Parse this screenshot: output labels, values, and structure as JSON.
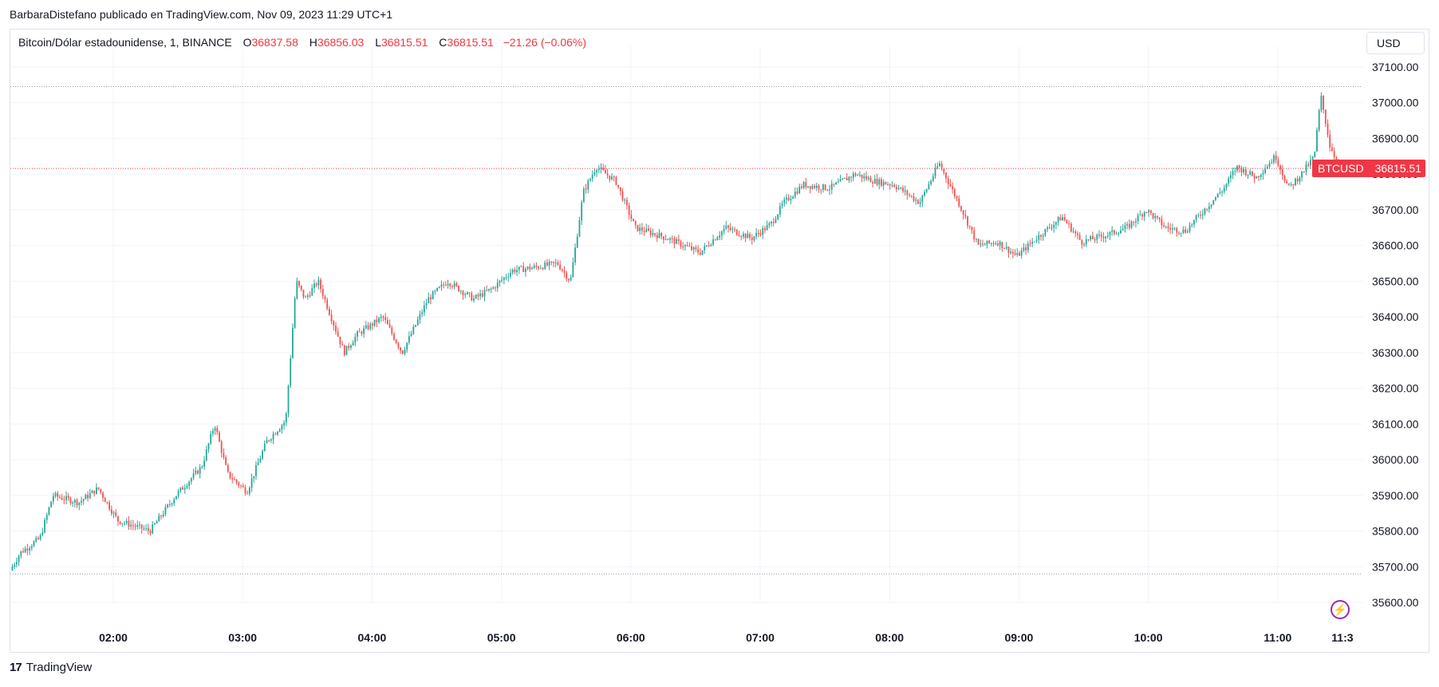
{
  "header": {
    "publisher_line": "BarbaraDistefano publicado en TradingView.com, Nov 09, 2023 11:29 UTC+1"
  },
  "legend": {
    "symbol_text": "Bitcoin/Dólar estadounidense, 1, BINANCE",
    "o_label": "O",
    "o_value": "36837.58",
    "h_label": "H",
    "h_value": "36856.03",
    "l_label": "L",
    "l_value": "36815.51",
    "c_label": "C",
    "c_value": "36815.51",
    "change": "−21.26 (−0.06%)"
  },
  "currency_button": "USD",
  "price_badge": {
    "symbol": "BTCUSD",
    "price": "36815.51"
  },
  "footer": {
    "brand": "TradingView",
    "logo_glyph": "17"
  },
  "colors": {
    "up": "#26a69a",
    "down": "#ef5350",
    "grid": "#f0f3fa",
    "badge": "#f23645",
    "bolt": "#9c27b0"
  },
  "chart_data": {
    "type": "candlestick",
    "ylim": [
      35550,
      37150
    ],
    "y_ticks": [
      35600,
      35700,
      35800,
      35900,
      36000,
      36100,
      36200,
      36300,
      36400,
      36500,
      36600,
      36700,
      36800,
      36900,
      37000,
      37100
    ],
    "y_tick_labels": [
      "35600.00",
      "35700.00",
      "35800.00",
      "35900.00",
      "36000.00",
      "36100.00",
      "36200.00",
      "36300.00",
      "36400.00",
      "36500.00",
      "36600.00",
      "36700.00",
      "36800.00",
      "36900.00",
      "37000.00",
      "37100.00"
    ],
    "x_ticks": [
      "02:00",
      "03:00",
      "04:00",
      "05:00",
      "06:00",
      "07:00",
      "08:00",
      "09:00",
      "10:00",
      "11:00",
      "11:3"
    ],
    "x_tick_positions_hours": [
      2,
      3,
      4,
      5,
      6,
      7,
      8,
      9,
      10,
      11,
      11.5
    ],
    "x_range_hours": [
      1.22,
      11.62
    ],
    "current_price": 36815.51,
    "high_marker": 37045,
    "low_marker": 35680,
    "path_key_points": [
      [
        1.22,
        35690
      ],
      [
        1.3,
        35740
      ],
      [
        1.45,
        35780
      ],
      [
        1.55,
        35900
      ],
      [
        1.75,
        35880
      ],
      [
        1.9,
        35920
      ],
      [
        2.05,
        35830
      ],
      [
        2.3,
        35800
      ],
      [
        2.5,
        35900
      ],
      [
        2.7,
        35980
      ],
      [
        2.8,
        36100
      ],
      [
        2.9,
        35960
      ],
      [
        3.05,
        35910
      ],
      [
        3.2,
        36050
      ],
      [
        3.35,
        36110
      ],
      [
        3.43,
        36500
      ],
      [
        3.5,
        36450
      ],
      [
        3.6,
        36500
      ],
      [
        3.8,
        36300
      ],
      [
        3.9,
        36350
      ],
      [
        4.1,
        36400
      ],
      [
        4.25,
        36300
      ],
      [
        4.45,
        36450
      ],
      [
        4.6,
        36500
      ],
      [
        4.8,
        36450
      ],
      [
        4.95,
        36480
      ],
      [
        5.1,
        36530
      ],
      [
        5.3,
        36540
      ],
      [
        5.45,
        36550
      ],
      [
        5.55,
        36500
      ],
      [
        5.65,
        36750
      ],
      [
        5.75,
        36820
      ],
      [
        5.9,
        36780
      ],
      [
        6.05,
        36650
      ],
      [
        6.3,
        36620
      ],
      [
        6.55,
        36580
      ],
      [
        6.75,
        36650
      ],
      [
        6.95,
        36620
      ],
      [
        7.1,
        36660
      ],
      [
        7.2,
        36720
      ],
      [
        7.35,
        36770
      ],
      [
        7.55,
        36760
      ],
      [
        7.75,
        36800
      ],
      [
        7.9,
        36780
      ],
      [
        8.05,
        36770
      ],
      [
        8.25,
        36720
      ],
      [
        8.4,
        36830
      ],
      [
        8.55,
        36720
      ],
      [
        8.7,
        36600
      ],
      [
        8.85,
        36610
      ],
      [
        9.0,
        36570
      ],
      [
        9.15,
        36620
      ],
      [
        9.35,
        36680
      ],
      [
        9.5,
        36610
      ],
      [
        9.7,
        36630
      ],
      [
        9.85,
        36650
      ],
      [
        10.0,
        36700
      ],
      [
        10.15,
        36650
      ],
      [
        10.3,
        36640
      ],
      [
        10.45,
        36700
      ],
      [
        10.6,
        36760
      ],
      [
        10.7,
        36820
      ],
      [
        10.85,
        36790
      ],
      [
        11.0,
        36850
      ],
      [
        11.1,
        36760
      ],
      [
        11.2,
        36800
      ],
      [
        11.3,
        36850
      ],
      [
        11.35,
        37020
      ],
      [
        11.42,
        36880
      ],
      [
        11.47,
        36838
      ],
      [
        11.5,
        36815
      ]
    ]
  }
}
